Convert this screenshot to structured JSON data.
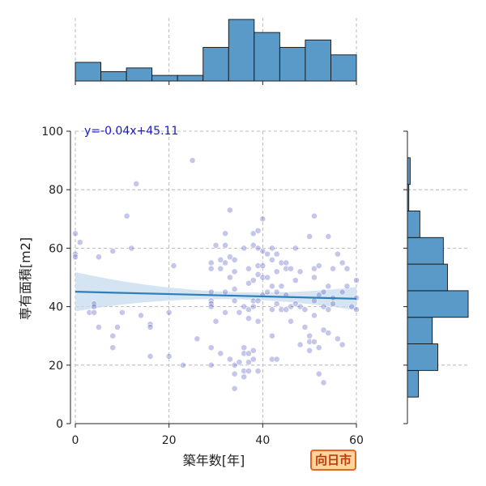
{
  "chart_data": {
    "type": "scatter",
    "xlabel": "築年数[年]",
    "ylabel": "専有面積[m2]",
    "xlim": [
      0,
      60
    ],
    "ylim": [
      0,
      100
    ],
    "xticks": [
      0,
      20,
      40,
      60
    ],
    "yticks": [
      0,
      20,
      40,
      60,
      80,
      100
    ],
    "grid": true,
    "annotation": "y=-0.04x+45.11",
    "regression": {
      "slope": -0.04,
      "intercept": 45.11
    },
    "badge": "向日市",
    "colors": {
      "points": "#5a5fc4",
      "line": "#2e7eb8",
      "band": "#c6dbef",
      "hist": "#5a9ac8",
      "annotation": "#1a1acc",
      "badge_border": "#e8641e",
      "badge_fill": "#ffd59e",
      "badge_text": "#c0390a"
    },
    "points": [
      [
        0,
        65
      ],
      [
        0,
        58
      ],
      [
        0,
        57
      ],
      [
        1,
        62
      ],
      [
        3,
        38
      ],
      [
        4,
        41
      ],
      [
        4,
        40
      ],
      [
        4,
        38
      ],
      [
        5,
        57
      ],
      [
        5,
        33
      ],
      [
        8,
        59
      ],
      [
        8,
        30
      ],
      [
        8,
        26
      ],
      [
        9,
        33
      ],
      [
        10,
        38
      ],
      [
        11,
        71
      ],
      [
        12,
        60
      ],
      [
        13,
        82
      ],
      [
        14,
        37
      ],
      [
        16,
        34
      ],
      [
        16,
        33
      ],
      [
        16,
        23
      ],
      [
        20,
        38
      ],
      [
        20,
        23
      ],
      [
        21,
        54
      ],
      [
        23,
        20
      ],
      [
        25,
        90
      ],
      [
        26,
        29
      ],
      [
        29,
        55
      ],
      [
        29,
        53
      ],
      [
        29,
        45
      ],
      [
        29,
        42
      ],
      [
        29,
        41
      ],
      [
        29,
        40
      ],
      [
        29,
        26
      ],
      [
        29,
        20
      ],
      [
        30,
        61
      ],
      [
        30,
        35
      ],
      [
        31,
        56
      ],
      [
        31,
        53
      ],
      [
        31,
        24
      ],
      [
        32,
        65
      ],
      [
        32,
        61
      ],
      [
        32,
        55
      ],
      [
        32,
        45
      ],
      [
        32,
        38
      ],
      [
        33,
        73
      ],
      [
        33,
        57
      ],
      [
        33,
        50
      ],
      [
        33,
        22
      ],
      [
        34,
        56
      ],
      [
        34,
        52
      ],
      [
        34,
        46
      ],
      [
        34,
        42
      ],
      [
        34,
        20
      ],
      [
        34,
        17
      ],
      [
        34,
        12
      ],
      [
        35,
        38
      ],
      [
        35,
        21
      ],
      [
        36,
        60
      ],
      [
        36,
        40
      ],
      [
        36,
        26
      ],
      [
        36,
        24
      ],
      [
        36,
        18
      ],
      [
        36,
        16
      ],
      [
        37,
        53
      ],
      [
        37,
        48
      ],
      [
        37,
        39
      ],
      [
        37,
        36
      ],
      [
        37,
        24
      ],
      [
        37,
        21
      ],
      [
        37,
        18
      ],
      [
        38,
        65
      ],
      [
        38,
        61
      ],
      [
        38,
        49
      ],
      [
        38,
        42
      ],
      [
        38,
        40
      ],
      [
        38,
        25
      ],
      [
        38,
        22
      ],
      [
        39,
        66
      ],
      [
        39,
        60
      ],
      [
        39,
        54
      ],
      [
        39,
        51
      ],
      [
        39,
        42
      ],
      [
        39,
        35
      ],
      [
        39,
        18
      ],
      [
        40,
        70
      ],
      [
        40,
        59
      ],
      [
        40,
        54
      ],
      [
        40,
        50
      ],
      [
        40,
        44
      ],
      [
        41,
        58
      ],
      [
        41,
        50
      ],
      [
        41,
        45
      ],
      [
        42,
        60
      ],
      [
        42,
        56
      ],
      [
        42,
        47
      ],
      [
        42,
        39
      ],
      [
        42,
        30
      ],
      [
        42,
        22
      ],
      [
        43,
        58
      ],
      [
        43,
        52
      ],
      [
        43,
        45
      ],
      [
        43,
        41
      ],
      [
        43,
        22
      ],
      [
        44,
        55
      ],
      [
        44,
        47
      ],
      [
        44,
        39
      ],
      [
        45,
        55
      ],
      [
        45,
        53
      ],
      [
        45,
        44
      ],
      [
        45,
        39
      ],
      [
        46,
        53
      ],
      [
        46,
        40
      ],
      [
        46,
        35
      ],
      [
        47,
        60
      ],
      [
        47,
        49
      ],
      [
        47,
        41
      ],
      [
        48,
        52
      ],
      [
        48,
        40
      ],
      [
        48,
        27
      ],
      [
        49,
        39
      ],
      [
        49,
        33
      ],
      [
        50,
        64
      ],
      [
        50,
        30
      ],
      [
        50,
        28
      ],
      [
        50,
        25
      ],
      [
        51,
        71
      ],
      [
        51,
        53
      ],
      [
        51,
        50
      ],
      [
        51,
        42
      ],
      [
        51,
        37
      ],
      [
        51,
        28
      ],
      [
        52,
        54
      ],
      [
        52,
        44
      ],
      [
        52,
        26
      ],
      [
        52,
        17
      ],
      [
        53,
        45
      ],
      [
        53,
        40
      ],
      [
        53,
        32
      ],
      [
        53,
        14
      ],
      [
        54,
        64
      ],
      [
        54,
        47
      ],
      [
        54,
        39
      ],
      [
        54,
        31
      ],
      [
        55,
        53
      ],
      [
        55,
        43
      ],
      [
        55,
        41
      ],
      [
        56,
        58
      ],
      [
        56,
        29
      ],
      [
        57,
        55
      ],
      [
        57,
        45
      ],
      [
        57,
        27
      ],
      [
        58,
        53
      ],
      [
        58,
        47
      ],
      [
        59,
        40
      ],
      [
        60,
        49
      ],
      [
        60,
        43
      ],
      [
        60,
        39
      ]
    ]
  }
}
